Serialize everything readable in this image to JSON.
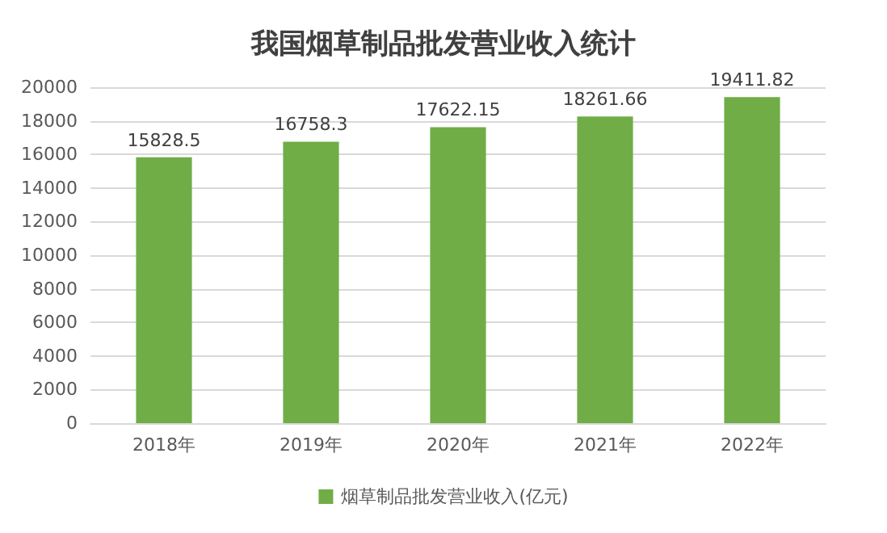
{
  "chart_data": {
    "type": "bar",
    "title": "我国烟草制品批发营业收入统计",
    "categories": [
      "2018年",
      "2019年",
      "2020年",
      "2021年",
      "2022年"
    ],
    "series": [
      {
        "name": "烟草制品批发营业收入(亿元)",
        "color": "#70ad47",
        "values": [
          15828.5,
          16758.3,
          17622.15,
          18261.66,
          19411.82
        ]
      }
    ],
    "ylim": [
      0,
      20000
    ],
    "yticks": [
      0,
      2000,
      4000,
      6000,
      8000,
      10000,
      12000,
      14000,
      16000,
      18000,
      20000
    ],
    "grid": "y",
    "legend": "bottom",
    "data_labels": true
  }
}
